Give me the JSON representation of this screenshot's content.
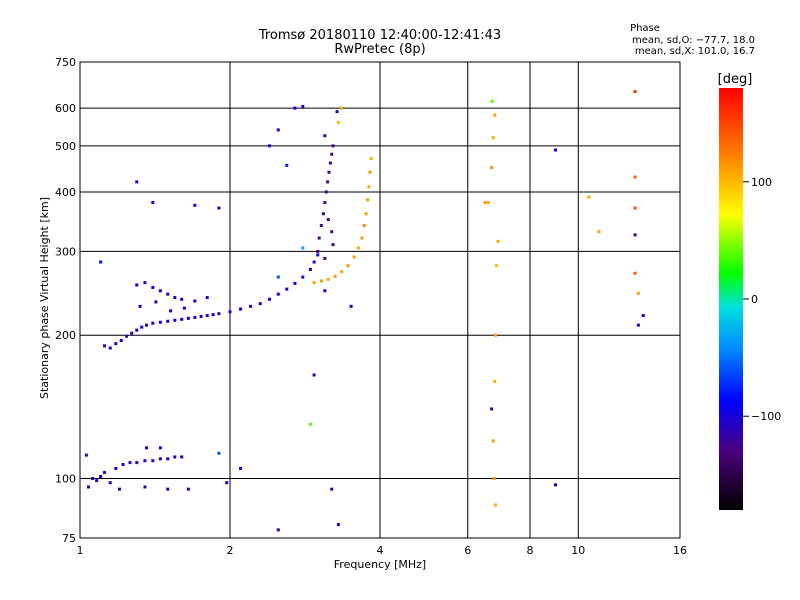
{
  "chart_data": {
    "type": "scatter",
    "title": "Tromsø 20180110 12:40:00-12:41:43",
    "subtitle": "RwPretec (8p)",
    "xlabel": "Frequency [MHz]",
    "ylabel": "Stationary phase Virtual Height [km]",
    "x_scale": "log",
    "y_scale": "log",
    "xlim": [
      1,
      16
    ],
    "ylim": [
      75,
      750
    ],
    "x_ticks": [
      1,
      2,
      4,
      6,
      8,
      10,
      16
    ],
    "x_tick_labels": [
      "1",
      "2",
      "4",
      "6",
      "8",
      "10",
      "16"
    ],
    "y_ticks": [
      75,
      100,
      200,
      300,
      400,
      500,
      600,
      750
    ],
    "y_tick_labels": [
      "75",
      "100",
      "200",
      "300",
      "400",
      "500",
      "600",
      "750"
    ],
    "grid": true,
    "phase_box": {
      "title": "Phase",
      "line_o": "mean, sd,O: −77.7, 18.0",
      "line_x": "mean, sd,X: 101.0, 16.7"
    },
    "colorbar": {
      "label": "[deg]",
      "range": [
        -180,
        180
      ],
      "tick_values": [
        100,
        0,
        -100
      ],
      "tick_labels": [
        "100",
        "0",
        "−100"
      ]
    },
    "series": [
      {
        "color_by": "phase_deg",
        "points": [
          [
            1.04,
            96,
            -110
          ],
          [
            1.06,
            100,
            -105
          ],
          [
            1.08,
            99,
            -115
          ],
          [
            1.1,
            101,
            -100
          ],
          [
            1.12,
            103,
            -108
          ],
          [
            1.15,
            98,
            -112
          ],
          [
            1.18,
            105,
            -95
          ],
          [
            1.22,
            107,
            -102
          ],
          [
            1.26,
            108,
            -110
          ],
          [
            1.3,
            108,
            -105
          ],
          [
            1.35,
            109,
            -100
          ],
          [
            1.4,
            109,
            -108
          ],
          [
            1.45,
            110,
            -112
          ],
          [
            1.5,
            110,
            -104
          ],
          [
            1.55,
            111,
            -96
          ],
          [
            1.6,
            111,
            -108
          ],
          [
            1.03,
            112,
            -120
          ],
          [
            1.36,
            116,
            -90
          ],
          [
            1.45,
            116,
            -100
          ],
          [
            1.9,
            113,
            -60
          ],
          [
            1.2,
            95,
            -115
          ],
          [
            1.35,
            96,
            -110
          ],
          [
            1.5,
            95,
            -108
          ],
          [
            1.65,
            95,
            -100
          ],
          [
            1.97,
            98,
            -105
          ],
          [
            2.1,
            105,
            -95
          ],
          [
            1.12,
            190,
            -105
          ],
          [
            1.15,
            188,
            -110
          ],
          [
            1.18,
            192,
            -102
          ],
          [
            1.21,
            195,
            -98
          ],
          [
            1.24,
            199,
            -106
          ],
          [
            1.27,
            202,
            -112
          ],
          [
            1.3,
            205,
            -100
          ],
          [
            1.33,
            208,
            -95
          ],
          [
            1.36,
            210,
            -108
          ],
          [
            1.4,
            212,
            -104
          ],
          [
            1.45,
            213,
            -96
          ],
          [
            1.5,
            214,
            -110
          ],
          [
            1.55,
            215,
            -100
          ],
          [
            1.6,
            216,
            -105
          ],
          [
            1.65,
            217,
            -98
          ],
          [
            1.7,
            218,
            -102
          ],
          [
            1.75,
            219,
            -110
          ],
          [
            1.8,
            220,
            -100
          ],
          [
            1.85,
            221,
            -95
          ],
          [
            1.9,
            222,
            -108
          ],
          [
            2.0,
            224,
            -104
          ],
          [
            2.1,
            227,
            -96
          ],
          [
            2.2,
            230,
            -100
          ],
          [
            2.3,
            233,
            -110
          ],
          [
            2.4,
            238,
            -102
          ],
          [
            2.5,
            244,
            -98
          ],
          [
            2.6,
            250,
            -106
          ],
          [
            2.7,
            257,
            -100
          ],
          [
            2.8,
            265,
            -95
          ],
          [
            2.9,
            275,
            -104
          ],
          [
            2.95,
            285,
            -100
          ],
          [
            3.0,
            295,
            -96
          ],
          [
            1.3,
            255,
            -105
          ],
          [
            1.35,
            258,
            -110
          ],
          [
            1.4,
            252,
            -100
          ],
          [
            1.45,
            248,
            -96
          ],
          [
            1.5,
            244,
            -108
          ],
          [
            1.55,
            240,
            -102
          ],
          [
            1.6,
            238,
            -98
          ],
          [
            1.7,
            236,
            -105
          ],
          [
            1.8,
            240,
            -100
          ],
          [
            1.32,
            230,
            -110
          ],
          [
            1.42,
            235,
            -104
          ],
          [
            1.52,
            225,
            -96
          ],
          [
            1.62,
            228,
            -100
          ],
          [
            3.0,
            300,
            -130
          ],
          [
            3.02,
            320,
            -125
          ],
          [
            3.05,
            340,
            -135
          ],
          [
            3.08,
            360,
            -128
          ],
          [
            3.1,
            380,
            -132
          ],
          [
            3.12,
            400,
            -125
          ],
          [
            3.14,
            420,
            -130
          ],
          [
            3.16,
            440,
            -135
          ],
          [
            3.18,
            460,
            -128
          ],
          [
            3.2,
            480,
            -132
          ],
          [
            3.22,
            500,
            -126
          ],
          [
            3.15,
            350,
            -130
          ],
          [
            3.2,
            330,
            -125
          ],
          [
            3.22,
            310,
            -135
          ],
          [
            3.1,
            290,
            -128
          ],
          [
            2.95,
            258,
            110
          ],
          [
            3.05,
            260,
            115
          ],
          [
            3.15,
            262,
            105
          ],
          [
            3.25,
            266,
            112
          ],
          [
            3.35,
            272,
            108
          ],
          [
            3.45,
            280,
            115
          ],
          [
            3.55,
            292,
            110
          ],
          [
            3.62,
            305,
            105
          ],
          [
            3.68,
            320,
            112
          ],
          [
            3.72,
            340,
            118
          ],
          [
            3.75,
            360,
            110
          ],
          [
            3.78,
            385,
            115
          ],
          [
            3.8,
            410,
            108
          ],
          [
            3.82,
            440,
            112
          ],
          [
            3.84,
            470,
            105
          ],
          [
            3.3,
            560,
            100
          ],
          [
            3.35,
            600,
            105
          ],
          [
            6.5,
            380,
            110
          ],
          [
            6.6,
            380,
            105
          ],
          [
            6.75,
            120,
            110
          ],
          [
            6.8,
            160,
            105
          ],
          [
            6.82,
            200,
            112
          ],
          [
            6.85,
            280,
            100
          ],
          [
            6.9,
            315,
            108
          ],
          [
            6.7,
            450,
            115
          ],
          [
            6.75,
            520,
            105
          ],
          [
            6.8,
            580,
            110
          ],
          [
            6.78,
            100,
            112
          ],
          [
            6.82,
            88,
            105
          ],
          [
            6.7,
            140,
            -110
          ],
          [
            6.72,
            620,
            40
          ],
          [
            1.3,
            420,
            -105
          ],
          [
            1.4,
            380,
            -95
          ],
          [
            1.7,
            375,
            -100
          ],
          [
            1.9,
            370,
            -110
          ],
          [
            2.4,
            500,
            -105
          ],
          [
            2.5,
            540,
            -100
          ],
          [
            2.7,
            600,
            -95
          ],
          [
            1.1,
            285,
            -80
          ],
          [
            2.8,
            605,
            -100
          ],
          [
            3.1,
            525,
            -110
          ],
          [
            3.28,
            590,
            -108
          ],
          [
            2.6,
            455,
            -80
          ],
          [
            9.0,
            490,
            -100
          ],
          [
            9.0,
            97,
            -90
          ],
          [
            13.0,
            650,
            160
          ],
          [
            13.0,
            430,
            140
          ],
          [
            13.0,
            370,
            150
          ],
          [
            13.0,
            325,
            -130
          ],
          [
            13.0,
            270,
            140
          ],
          [
            13.2,
            245,
            110
          ],
          [
            13.2,
            210,
            -100
          ],
          [
            13.5,
            220,
            -100
          ],
          [
            10.5,
            390,
            105
          ],
          [
            11.0,
            330,
            110
          ],
          [
            2.5,
            265,
            -60
          ],
          [
            2.8,
            305,
            -30
          ],
          [
            3.1,
            248,
            -100
          ],
          [
            3.5,
            230,
            -110
          ],
          [
            3.3,
            80,
            -110
          ],
          [
            3.2,
            95,
            -110
          ],
          [
            2.9,
            130,
            40
          ],
          [
            2.95,
            165,
            -115
          ],
          [
            2.5,
            78,
            -110
          ]
        ]
      }
    ]
  }
}
